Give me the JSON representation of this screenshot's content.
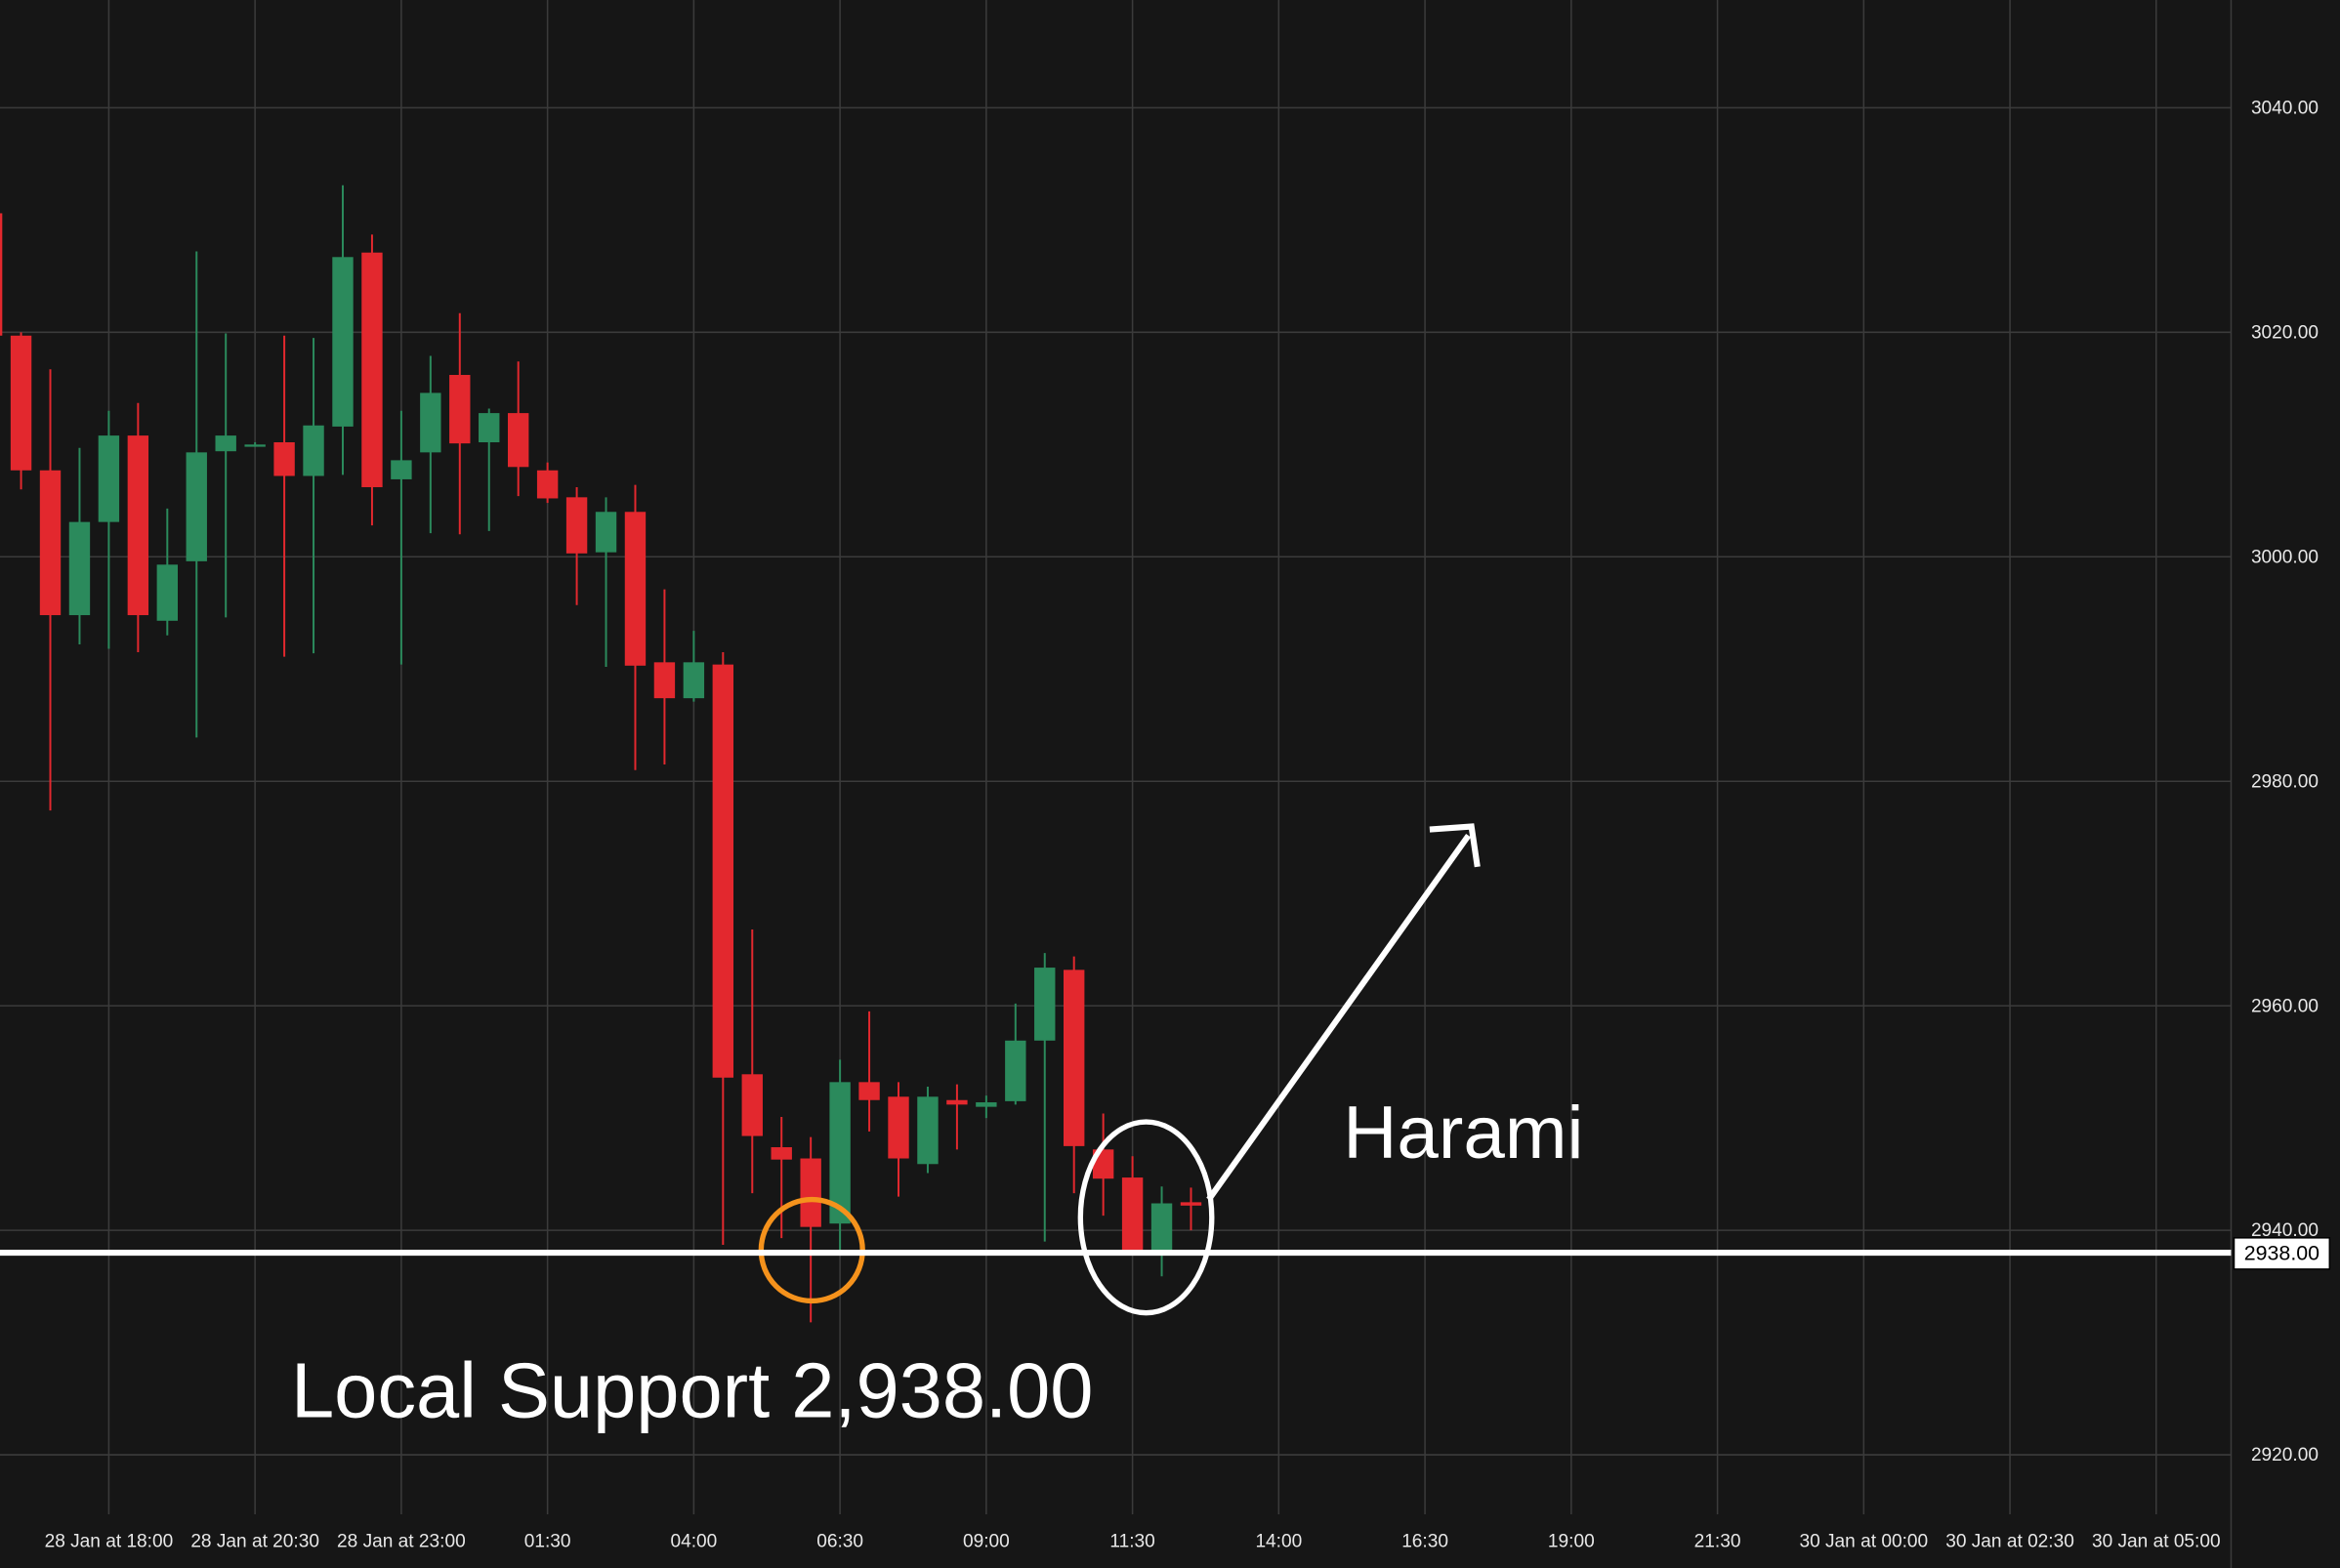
{
  "chart_data": {
    "type": "candlestick",
    "x": [
      16,
      16.5,
      17,
      17.5,
      18,
      18.5,
      19,
      19.5,
      20,
      20.5,
      21,
      21.5,
      22,
      22.5,
      23,
      23.5,
      24,
      24.5,
      25,
      25.5,
      26,
      26.5,
      27,
      27.5,
      28,
      28.5,
      29,
      29.5,
      30,
      30.5,
      31,
      31.5,
      32,
      32.5,
      33,
      33.5,
      34,
      34.5,
      35,
      35.5,
      36,
      36.5
    ],
    "open": [
      3030.6,
      3019.7,
      3007.7,
      2994.8,
      3003.1,
      3010.8,
      2994.3,
      2999.6,
      3009.4,
      3010.0,
      3010.2,
      3007.2,
      3011.6,
      3027.1,
      3006.9,
      3009.3,
      3016.2,
      3010.2,
      3012.8,
      3007.7,
      3005.3,
      3000.4,
      3004.0,
      2990.6,
      2987.4,
      2990.4,
      2953.9,
      2947.4,
      2946.4,
      2940.6,
      2953.2,
      2951.9,
      2945.9,
      2951.6,
      2951.0,
      2951.5,
      2956.9,
      2963.2,
      2947.2,
      2944.7,
      2938.2,
      2942.5
    ],
    "high": [
      3031.0,
      3020.0,
      3016.7,
      3009.7,
      3013.0,
      3013.7,
      3004.3,
      3027.2,
      3019.9,
      3010.2,
      3019.7,
      3019.5,
      3033.1,
      3028.7,
      3013.0,
      3017.9,
      3021.7,
      3013.2,
      3017.4,
      3008.4,
      3006.2,
      3005.3,
      3006.4,
      2997.1,
      2993.4,
      2991.5,
      2966.8,
      2950.1,
      2948.3,
      2955.2,
      2959.5,
      2953.2,
      2952.8,
      2953.0,
      2952.0,
      2960.2,
      2964.7,
      2964.4,
      2950.4,
      2946.6,
      2943.9,
      2943.8
    ],
    "low": [
      3019.0,
      3006.0,
      2977.4,
      2992.2,
      2991.8,
      2991.5,
      2993.0,
      2983.9,
      2994.6,
      3009.8,
      2991.1,
      2991.4,
      3007.3,
      3002.8,
      2990.4,
      3002.1,
      3002.0,
      3002.3,
      3005.4,
      3004.8,
      2995.7,
      2990.2,
      2981.0,
      2981.5,
      2987.1,
      2938.7,
      2943.3,
      2939.3,
      2931.8,
      2937.9,
      2948.8,
      2943.0,
      2945.1,
      2947.2,
      2950.0,
      2951.2,
      2939.0,
      2943.3,
      2941.3,
      2937.9,
      2935.9,
      2940.0
    ],
    "close": [
      3019.7,
      3007.7,
      2994.8,
      3003.1,
      3010.8,
      2994.8,
      2999.3,
      3009.3,
      3010.8,
      3010.0,
      3007.2,
      3011.7,
      3026.7,
      3006.2,
      3008.6,
      3014.6,
      3010.1,
      3012.8,
      3008.0,
      3005.2,
      3000.3,
      3004.0,
      2990.3,
      2987.4,
      2990.6,
      2953.6,
      2948.4,
      2946.3,
      2940.3,
      2953.2,
      2951.6,
      2946.4,
      2951.9,
      2951.2,
      2951.4,
      2956.9,
      2963.4,
      2947.5,
      2944.6,
      2938.2,
      2942.4,
      2942.2
    ],
    "up_color": "#2b8a5c",
    "down_color": "#e3282e",
    "xlim": [
      16.14,
      54.28
    ],
    "ylim": [
      2914.7,
      3049.6
    ],
    "xticks": [
      {
        "value": 18,
        "label": "28 Jan at 18:00"
      },
      {
        "value": 20.5,
        "label": "28 Jan at 20:30"
      },
      {
        "value": 23,
        "label": "28 Jan at 23:00"
      },
      {
        "value": 25.5,
        "label": "01:30"
      },
      {
        "value": 28,
        "label": "04:00"
      },
      {
        "value": 30.5,
        "label": "06:30"
      },
      {
        "value": 33,
        "label": "09:00"
      },
      {
        "value": 35.5,
        "label": "11:30"
      },
      {
        "value": 38,
        "label": "14:00"
      },
      {
        "value": 40.5,
        "label": "16:30"
      },
      {
        "value": 43,
        "label": "19:00"
      },
      {
        "value": 45.5,
        "label": "21:30"
      },
      {
        "value": 48,
        "label": "30 Jan at 00:00"
      },
      {
        "value": 50.5,
        "label": "30 Jan at 02:30"
      },
      {
        "value": 53,
        "label": "30 Jan at 05:00"
      }
    ],
    "yticks": [
      {
        "value": 2920,
        "label": "2920.00"
      },
      {
        "value": 2940,
        "label": "2940.00"
      },
      {
        "value": 2960,
        "label": "2960.00"
      },
      {
        "value": 2980,
        "label": "2980.00"
      },
      {
        "value": 3000,
        "label": "3000.00"
      },
      {
        "value": 3020,
        "label": "3020.00"
      },
      {
        "value": 3040,
        "label": "3040.00"
      }
    ],
    "grid": true,
    "support": {
      "value": 2938,
      "label": "2938.00"
    },
    "annotations": [
      "Local Support 2,938.00",
      "Harami"
    ]
  }
}
